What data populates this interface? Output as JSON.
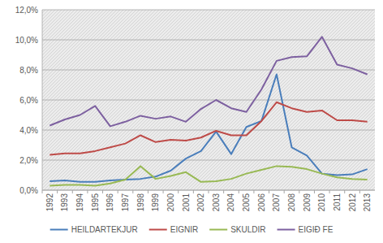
{
  "chart_data": {
    "type": "line",
    "categories": [
      "1992",
      "1993",
      "1994",
      "1995",
      "1996",
      "1997",
      "1998",
      "1999",
      "2000",
      "2001",
      "2002",
      "2003",
      "2004",
      "2005",
      "2006",
      "2007",
      "2008",
      "2009",
      "2010",
      "2011",
      "2012",
      "2013"
    ],
    "series": [
      {
        "name": "HEILDARTEKJUR",
        "color": "#4a7ebb",
        "values": [
          0.6,
          0.65,
          0.55,
          0.55,
          0.65,
          0.7,
          0.75,
          0.9,
          1.3,
          2.1,
          2.6,
          3.9,
          2.4,
          4.2,
          4.6,
          7.7,
          2.85,
          2.3,
          1.1,
          1.0,
          1.05,
          1.4
        ]
      },
      {
        "name": "EIGNIR",
        "color": "#be4b48",
        "values": [
          2.35,
          2.45,
          2.45,
          2.6,
          2.85,
          3.1,
          3.65,
          3.2,
          3.35,
          3.3,
          3.5,
          3.95,
          3.65,
          3.65,
          4.6,
          5.85,
          5.45,
          5.2,
          5.3,
          4.65,
          4.65,
          4.55
        ]
      },
      {
        "name": "SKULDIR",
        "color": "#98b954",
        "values": [
          0.3,
          0.35,
          0.35,
          0.3,
          0.45,
          0.7,
          1.6,
          0.75,
          0.95,
          1.2,
          0.55,
          0.6,
          0.75,
          1.1,
          1.35,
          1.6,
          1.55,
          1.4,
          1.1,
          0.85,
          0.75,
          0.7
        ]
      },
      {
        "name": "EIGIÐ FE",
        "color": "#7d60a0",
        "values": [
          4.3,
          4.7,
          5.0,
          5.6,
          4.25,
          4.55,
          4.95,
          4.75,
          4.9,
          4.55,
          5.4,
          6.0,
          5.45,
          5.2,
          6.7,
          8.6,
          8.85,
          8.9,
          10.2,
          8.35,
          8.1,
          7.7
        ]
      }
    ],
    "ylim": [
      0,
      12
    ],
    "yticks": [
      {
        "value": 0,
        "label": "0,0%"
      },
      {
        "value": 2,
        "label": "2,0%"
      },
      {
        "value": 4,
        "label": "4,0%"
      },
      {
        "value": 6,
        "label": "6,0%"
      },
      {
        "value": 8,
        "label": "8,0%"
      },
      {
        "value": 10,
        "label": "10,0%"
      },
      {
        "value": 12,
        "label": "12,0%"
      }
    ],
    "grid": true,
    "legend": "bottom"
  }
}
